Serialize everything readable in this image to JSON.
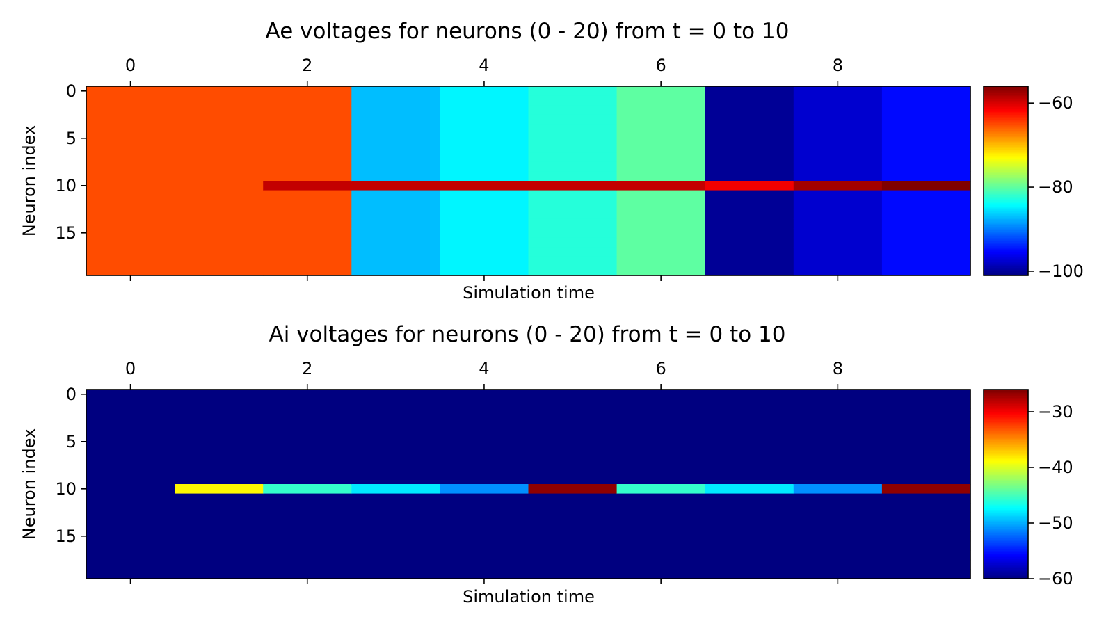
{
  "chart_data": [
    {
      "type": "heatmap",
      "title": "Ae voltages for neurons (0 - 20) from t = 0 to 10",
      "xlabel": "Simulation time",
      "ylabel": "Neuron index",
      "x_ticks": [
        "0",
        "2",
        "4",
        "6",
        "8"
      ],
      "y_ticks": [
        "0",
        "5",
        "10",
        "15"
      ],
      "colorbar": {
        "ticks": [
          -60,
          -80,
          -100
        ],
        "range": [
          -101,
          -56
        ],
        "colormap": "jet"
      },
      "n_rows": 20,
      "n_cols": 10,
      "columns": [
        {
          "t": 0,
          "base": -65.0
        },
        {
          "t": 1,
          "base": -65.0
        },
        {
          "t": 2,
          "base": -65.0
        },
        {
          "t": 3,
          "base": -87.0
        },
        {
          "t": 4,
          "base": -84.5
        },
        {
          "t": 5,
          "base": -82.5
        },
        {
          "t": 6,
          "base": -80.0
        },
        {
          "t": 7,
          "base": -100.0
        },
        {
          "t": 8,
          "base": -97.5
        },
        {
          "t": 9,
          "base": -95.0
        }
      ],
      "highlight_row": {
        "neuron": 10,
        "values": [
          null,
          null,
          -59.0,
          -59.0,
          -59.0,
          -59.0,
          -59.0,
          -61.0,
          -57.5,
          -56.0
        ]
      }
    },
    {
      "type": "heatmap",
      "title": "Ai voltages for neurons (0 - 20) from t = 0 to 10",
      "xlabel": "Simulation time",
      "ylabel": "Neuron index",
      "x_ticks": [
        "0",
        "2",
        "4",
        "6",
        "8"
      ],
      "y_ticks": [
        "0",
        "5",
        "10",
        "15"
      ],
      "colorbar": {
        "ticks": [
          -30,
          -40,
          -50,
          -60
        ],
        "range": [
          -60,
          -26
        ],
        "colormap": "jet"
      },
      "n_rows": 20,
      "n_cols": 10,
      "background_value": -60.0,
      "highlight_row": {
        "neuron": 10,
        "values": [
          -60.0,
          -38.5,
          -45.5,
          -48.0,
          -51.0,
          -26.5,
          -45.5,
          -48.0,
          -51.0,
          -26.5
        ]
      }
    }
  ]
}
